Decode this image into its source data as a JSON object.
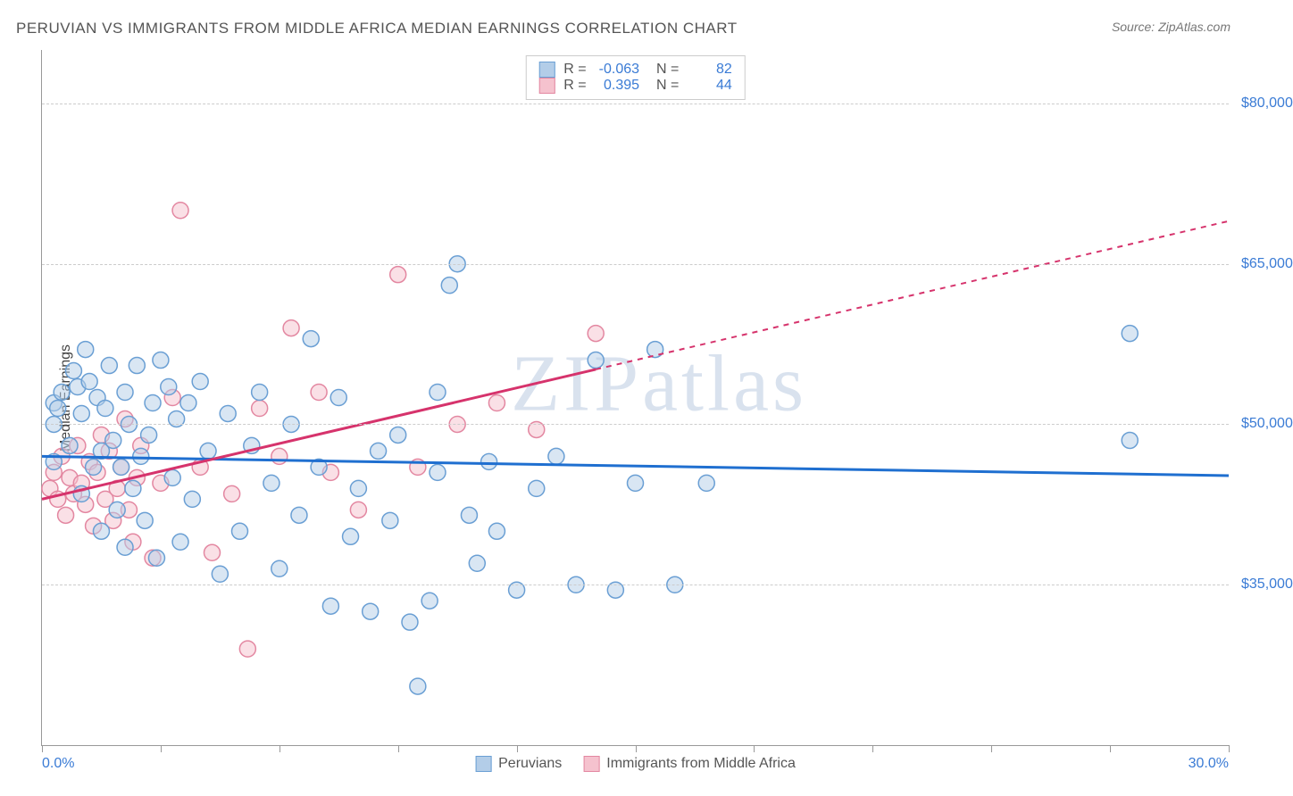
{
  "title": "PERUVIAN VS IMMIGRANTS FROM MIDDLE AFRICA MEDIAN EARNINGS CORRELATION CHART",
  "source_prefix": "Source: ",
  "source_name": "ZipAtlas.com",
  "watermark": "ZIPatlas",
  "y_axis_title": "Median Earnings",
  "chart": {
    "type": "scatter",
    "xlim": [
      0,
      30
    ],
    "ylim": [
      20000,
      85000
    ],
    "x_tick_labels": {
      "left": "0.0%",
      "right": "30.0%"
    },
    "x_ticks_at": [
      0,
      3,
      6,
      9,
      12,
      15,
      18,
      21,
      24,
      27,
      30
    ],
    "y_ticks": [
      {
        "value": 35000,
        "label": "$35,000"
      },
      {
        "value": 50000,
        "label": "$50,000"
      },
      {
        "value": 65000,
        "label": "$65,000"
      },
      {
        "value": 80000,
        "label": "$80,000"
      }
    ],
    "grid_color": "#cccccc",
    "background": "#ffffff",
    "marker_radius": 9,
    "marker_opacity": 0.5,
    "series": [
      {
        "name": "Peruvians",
        "color_fill": "#b3cde8",
        "color_stroke": "#6a9fd4",
        "R": "-0.063",
        "N": "82",
        "regression": {
          "x1": 0,
          "y1": 47000,
          "x2": 30,
          "y2": 45200,
          "solid_until_x": 30,
          "color": "#1f6fd0"
        },
        "points": [
          [
            0.3,
            52000
          ],
          [
            0.3,
            50000
          ],
          [
            0.3,
            46500
          ],
          [
            0.4,
            51500
          ],
          [
            0.5,
            53000
          ],
          [
            0.7,
            48000
          ],
          [
            0.8,
            55000
          ],
          [
            0.9,
            53500
          ],
          [
            1.0,
            51000
          ],
          [
            1.0,
            43500
          ],
          [
            1.1,
            57000
          ],
          [
            1.2,
            54000
          ],
          [
            1.3,
            46000
          ],
          [
            1.4,
            52500
          ],
          [
            1.5,
            40000
          ],
          [
            1.5,
            47500
          ],
          [
            1.6,
            51500
          ],
          [
            1.7,
            55500
          ],
          [
            1.8,
            48500
          ],
          [
            1.9,
            42000
          ],
          [
            2.0,
            46000
          ],
          [
            2.1,
            53000
          ],
          [
            2.1,
            38500
          ],
          [
            2.2,
            50000
          ],
          [
            2.3,
            44000
          ],
          [
            2.4,
            55500
          ],
          [
            2.5,
            47000
          ],
          [
            2.6,
            41000
          ],
          [
            2.7,
            49000
          ],
          [
            2.8,
            52000
          ],
          [
            2.9,
            37500
          ],
          [
            3.0,
            56000
          ],
          [
            3.2,
            53500
          ],
          [
            3.3,
            45000
          ],
          [
            3.4,
            50500
          ],
          [
            3.5,
            39000
          ],
          [
            3.7,
            52000
          ],
          [
            3.8,
            43000
          ],
          [
            4.0,
            54000
          ],
          [
            4.2,
            47500
          ],
          [
            4.5,
            36000
          ],
          [
            4.7,
            51000
          ],
          [
            5.0,
            40000
          ],
          [
            5.3,
            48000
          ],
          [
            5.5,
            53000
          ],
          [
            5.8,
            44500
          ],
          [
            6.0,
            36500
          ],
          [
            6.3,
            50000
          ],
          [
            6.5,
            41500
          ],
          [
            6.8,
            58000
          ],
          [
            7.0,
            46000
          ],
          [
            7.3,
            33000
          ],
          [
            7.5,
            52500
          ],
          [
            7.8,
            39500
          ],
          [
            8.0,
            44000
          ],
          [
            8.3,
            32500
          ],
          [
            8.5,
            47500
          ],
          [
            8.8,
            41000
          ],
          [
            9.0,
            49000
          ],
          [
            9.3,
            31500
          ],
          [
            9.5,
            25500
          ],
          [
            9.8,
            33500
          ],
          [
            10.0,
            45500
          ],
          [
            10.3,
            63000
          ],
          [
            10.5,
            65000
          ],
          [
            10.8,
            41500
          ],
          [
            11.0,
            37000
          ],
          [
            11.3,
            46500
          ],
          [
            11.5,
            40000
          ],
          [
            12.0,
            34500
          ],
          [
            12.5,
            44000
          ],
          [
            13.0,
            47000
          ],
          [
            13.5,
            35000
          ],
          [
            14.0,
            56000
          ],
          [
            14.5,
            34500
          ],
          [
            15.0,
            44500
          ],
          [
            15.5,
            57000
          ],
          [
            16.0,
            35000
          ],
          [
            16.8,
            44500
          ],
          [
            27.5,
            58500
          ],
          [
            27.5,
            48500
          ],
          [
            10.0,
            53000
          ]
        ]
      },
      {
        "name": "Immigrants from Middle Africa",
        "color_fill": "#f5c2ce",
        "color_stroke": "#e387a1",
        "R": "0.395",
        "N": "44",
        "regression": {
          "x1": 0,
          "y1": 43000,
          "x2": 30,
          "y2": 69000,
          "solid_until_x": 14,
          "color": "#d6336c"
        },
        "points": [
          [
            0.2,
            44000
          ],
          [
            0.3,
            45500
          ],
          [
            0.4,
            43000
          ],
          [
            0.5,
            47000
          ],
          [
            0.6,
            41500
          ],
          [
            0.7,
            45000
          ],
          [
            0.8,
            43500
          ],
          [
            0.9,
            48000
          ],
          [
            1.0,
            44500
          ],
          [
            1.1,
            42500
          ],
          [
            1.2,
            46500
          ],
          [
            1.3,
            40500
          ],
          [
            1.4,
            45500
          ],
          [
            1.5,
            49000
          ],
          [
            1.6,
            43000
          ],
          [
            1.7,
            47500
          ],
          [
            1.8,
            41000
          ],
          [
            1.9,
            44000
          ],
          [
            2.0,
            46000
          ],
          [
            2.1,
            50500
          ],
          [
            2.2,
            42000
          ],
          [
            2.3,
            39000
          ],
          [
            2.4,
            45000
          ],
          [
            2.5,
            48000
          ],
          [
            2.8,
            37500
          ],
          [
            3.0,
            44500
          ],
          [
            3.3,
            52500
          ],
          [
            3.5,
            70000
          ],
          [
            4.0,
            46000
          ],
          [
            4.3,
            38000
          ],
          [
            4.8,
            43500
          ],
          [
            5.2,
            29000
          ],
          [
            5.5,
            51500
          ],
          [
            6.0,
            47000
          ],
          [
            6.3,
            59000
          ],
          [
            7.0,
            53000
          ],
          [
            7.3,
            45500
          ],
          [
            8.0,
            42000
          ],
          [
            9.0,
            64000
          ],
          [
            9.5,
            46000
          ],
          [
            10.5,
            50000
          ],
          [
            11.5,
            52000
          ],
          [
            12.5,
            49500
          ],
          [
            14.0,
            58500
          ]
        ]
      }
    ]
  },
  "legend_labels": {
    "R_prefix": "R = ",
    "N_prefix": "N = "
  }
}
